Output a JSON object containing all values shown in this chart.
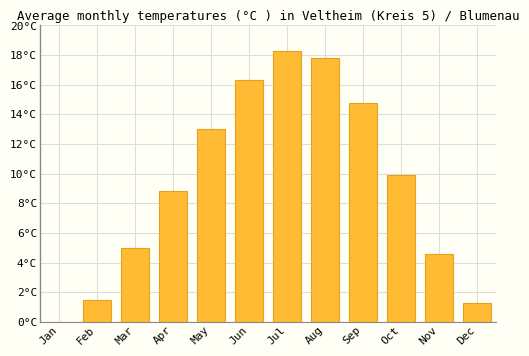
{
  "title": "Average monthly temperatures (°C ) in Veltheim (Kreis 5) / Blumenau",
  "months": [
    "Jan",
    "Feb",
    "Mar",
    "Apr",
    "May",
    "Jun",
    "Jul",
    "Aug",
    "Sep",
    "Oct",
    "Nov",
    "Dec"
  ],
  "values": [
    0.0,
    1.5,
    5.0,
    8.8,
    13.0,
    16.3,
    18.3,
    17.8,
    14.8,
    9.9,
    4.6,
    1.3
  ],
  "bar_color": "#FFBB33",
  "bar_edge_color": "#E8A020",
  "background_color": "#FFFFF5",
  "grid_color": "#DDDDDD",
  "ylim": [
    0,
    20
  ],
  "ytick_step": 2,
  "title_fontsize": 9,
  "tick_fontsize": 8,
  "font_family": "monospace"
}
